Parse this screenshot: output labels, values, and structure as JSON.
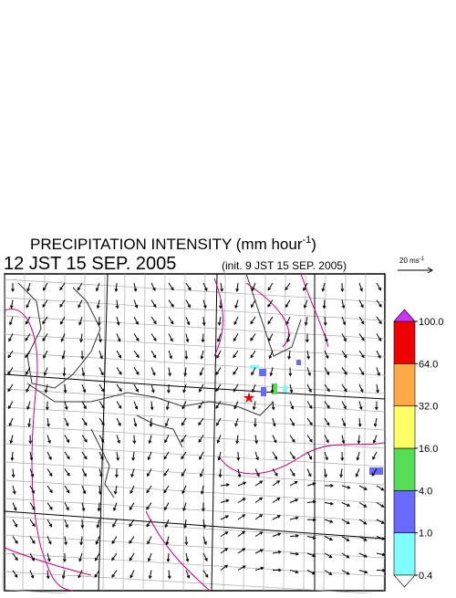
{
  "header": {
    "title": "PRECIPITATION INTENSITY (mm hour",
    "title_exponent": "-1",
    "title_close": ")",
    "time": "12 JST 15 SEP. 2005",
    "init": "(init. 9 JST 15 SEP. 2005)"
  },
  "wind_legend": {
    "label": "20 ms",
    "exponent": "-1"
  },
  "colorbar": {
    "ticks": [
      {
        "value": 0.4,
        "label": "0.4"
      },
      {
        "value": 1,
        "label": "1.0"
      },
      {
        "value": 4,
        "label": "4.0"
      },
      {
        "value": 16,
        "label": "16.0"
      },
      {
        "value": 32,
        "label": "32.0"
      },
      {
        "value": 64,
        "label": "64.0"
      },
      {
        "value": 100,
        "label": "100.0"
      }
    ],
    "colors": [
      "#80ffff",
      "#6a6aff",
      "#55dd55",
      "#ffff66",
      "#ffaa44",
      "#ee0000"
    ],
    "over_color": "#cc33ff",
    "under_color": "#ffffff"
  }
}
